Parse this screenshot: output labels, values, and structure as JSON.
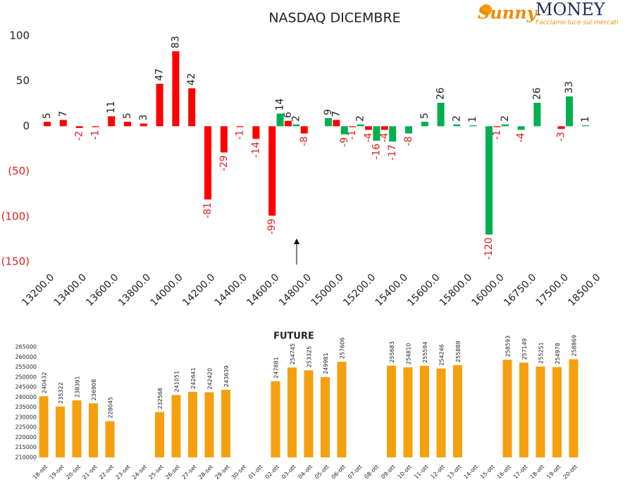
{
  "logo": {
    "brand": "Sunny",
    "name": "MONEY",
    "tagline": "Facciamo luce sui mercati"
  },
  "chart_data": [
    {
      "type": "bar",
      "title": "NASDAQ DICEMBRE",
      "categories": [
        "13200.0",
        null,
        "13400.0",
        null,
        "13600.0",
        null,
        "13800.0",
        null,
        "14000.0",
        null,
        "14200.0",
        null,
        "14400.0",
        null,
        "14600.0",
        null,
        "14800.0",
        null,
        "15000.0",
        null,
        "15200.0",
        null,
        "15400.0",
        null,
        "15600.0",
        null,
        "15800.0",
        null,
        "16000.0",
        null,
        "16750.0",
        null,
        "17500.0",
        null,
        "18500.0"
      ],
      "series": [
        {
          "color": "#ff0000",
          "values": [
            5,
            7,
            -2,
            -1,
            11,
            5,
            3,
            47,
            83,
            42,
            -81,
            -29,
            -1,
            -14,
            -99,
            6,
            -8,
            null,
            7,
            -1,
            -4,
            -4,
            null,
            null,
            null,
            null,
            null,
            null,
            -1,
            null,
            null,
            null,
            -3,
            null,
            null
          ]
        },
        {
          "color": "#00b050",
          "values": [
            null,
            null,
            null,
            null,
            null,
            null,
            null,
            null,
            null,
            null,
            null,
            null,
            null,
            null,
            14,
            2,
            null,
            9,
            -9,
            2,
            -16,
            -17,
            -8,
            5,
            26,
            2,
            1,
            -120,
            2,
            -4,
            26,
            null,
            33,
            1,
            null
          ]
        }
      ],
      "ylim": [
        -150,
        100
      ],
      "yticks": [
        100,
        50,
        0,
        {
          "value": -50,
          "label": "(50)"
        },
        {
          "value": -100,
          "label": "(100)"
        },
        {
          "value": -150,
          "label": "(150)"
        }
      ],
      "negative_color": "#e02020",
      "grid": false
    },
    {
      "type": "bar",
      "title": "FUTURE",
      "categories": [
        "18-set",
        "19-set",
        "20-set",
        "21-set",
        "22-set",
        "23-set",
        "24-set",
        "25-set",
        "26-set",
        "27-set",
        "28-set",
        "29-set",
        "30-set",
        "01-ott",
        "02-ott",
        "03-ott",
        "04-ott",
        "05-ott",
        "06-ott",
        "07-ott",
        "08-ott",
        "09-ott",
        "10-ott",
        "11-ott",
        "12-ott",
        "13-ott",
        "14-ott",
        "15-ott",
        "16-ott",
        "17-ott",
        "18-ott",
        "19-ott",
        "20-ott"
      ],
      "values": [
        240432,
        235322,
        238391,
        236908,
        228045,
        null,
        null,
        232568,
        241051,
        242641,
        242420,
        243639,
        null,
        null,
        247881,
        254745,
        253325,
        249981,
        257606,
        null,
        null,
        255683,
        254810,
        255594,
        254246,
        255889,
        null,
        null,
        258593,
        257149,
        255251,
        254978,
        258869
      ],
      "color": "#f5a00f",
      "ylim": [
        210000,
        265000
      ],
      "yticks": [
        210000,
        215000,
        220000,
        225000,
        230000,
        235000,
        240000,
        245000,
        250000,
        255000,
        260000,
        265000
      ],
      "grid": false
    }
  ]
}
